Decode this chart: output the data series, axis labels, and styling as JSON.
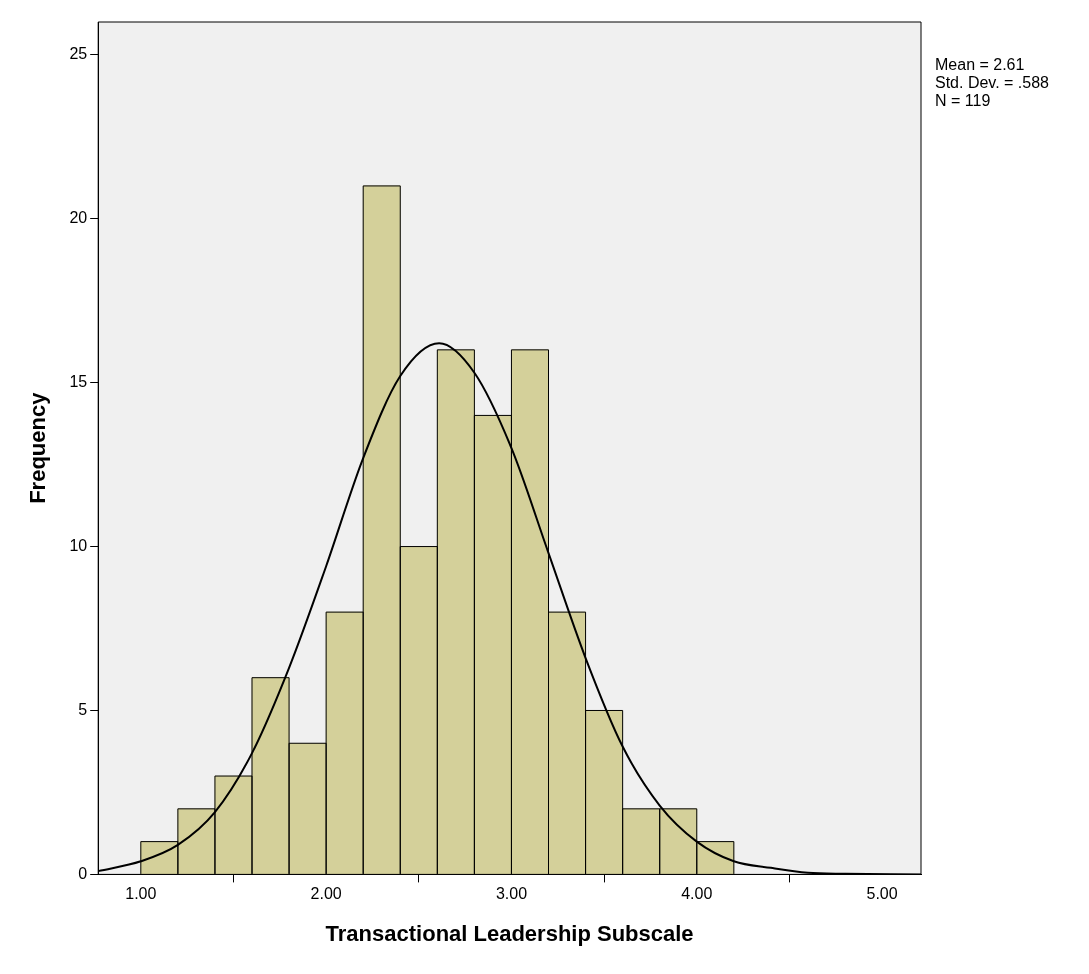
{
  "chart_data": {
    "type": "histogram",
    "xlabel": "Transactional Leadership Subscale",
    "ylabel": "Frequency",
    "annotations": [
      "Mean = 2.61",
      "Std. Dev. = .588",
      "N = 119"
    ],
    "series": [
      {
        "bins": [
          1.0,
          1.2,
          1.4,
          1.6,
          1.8,
          2.0,
          2.2,
          2.4,
          2.6,
          2.8,
          3.0,
          3.2,
          3.4,
          3.6,
          3.8,
          4.0,
          4.2
        ],
        "values": [
          1,
          2,
          3,
          6,
          4,
          8,
          21,
          10,
          16,
          14,
          16,
          8,
          5,
          2,
          2,
          1
        ],
        "color": "#d4d09a"
      },
      {
        "type": "line",
        "x": [
          0.77,
          1.0,
          1.2,
          1.4,
          1.6,
          1.8,
          2.0,
          2.2,
          2.4,
          2.61,
          2.8,
          3.0,
          3.2,
          3.4,
          3.6,
          3.8,
          4.0,
          4.2,
          4.4,
          4.6,
          4.8,
          5.21
        ],
        "values": [
          0.1,
          0.4,
          0.9,
          1.9,
          3.7,
          6.3,
          9.4,
          12.7,
          15.2,
          16.2,
          15.3,
          13.0,
          9.8,
          6.6,
          3.9,
          2.1,
          1.0,
          0.4,
          0.2,
          0.05,
          0.02,
          0
        ],
        "color": "#000000"
      }
    ],
    "xlim": [
      0.77,
      5.21
    ],
    "xticks": [
      {
        "value": 1,
        "label": "1.00"
      },
      {
        "value": 2,
        "label": "2.00"
      },
      {
        "value": 3,
        "label": "3.00"
      },
      {
        "value": 4,
        "label": "4.00"
      },
      {
        "value": 5,
        "label": "5.00"
      }
    ],
    "ylim": [
      0,
      26
    ],
    "yticks": [
      0,
      5,
      10,
      15,
      20,
      25
    ],
    "grid": false,
    "legend": false,
    "marker": "none",
    "line_style": "solid"
  }
}
